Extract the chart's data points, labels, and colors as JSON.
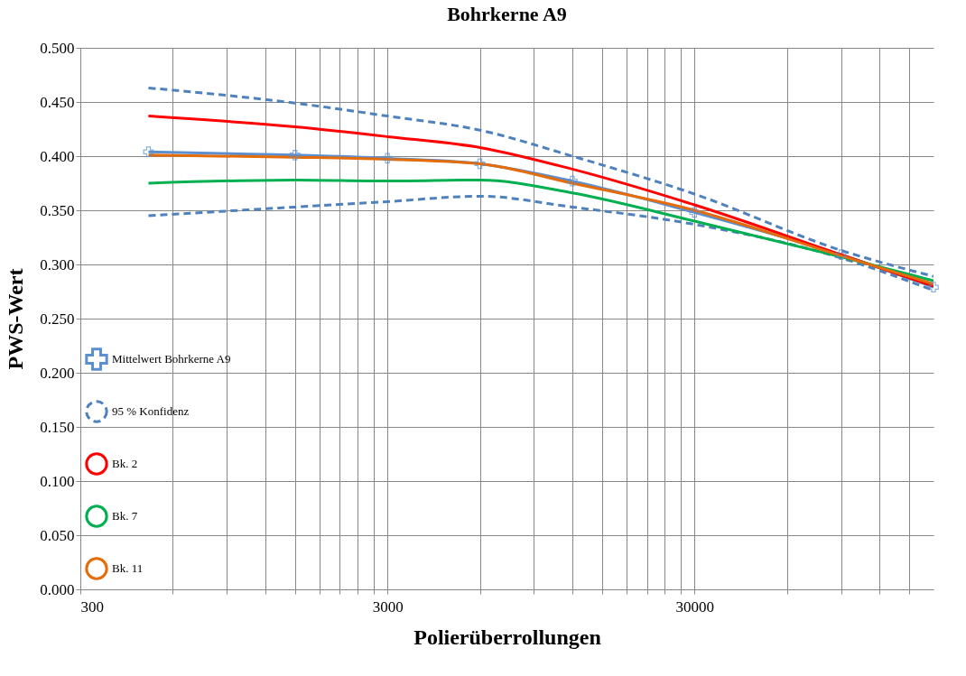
{
  "chart_data": {
    "type": "line",
    "title": "Bohrkerne A9",
    "xlabel": "Polierüberrollungen",
    "ylabel": "PWS-Wert",
    "log": "x",
    "grid": true,
    "legend": "bottom left",
    "xlim": [
      300,
      180000
    ],
    "xticks": [
      300,
      {
        "value": 600,
        "label": null
      },
      {
        "value": 900,
        "label": null
      },
      {
        "value": 1200,
        "label": null
      },
      {
        "value": 1500,
        "label": null
      },
      {
        "value": 1800,
        "label": null
      },
      {
        "value": 2100,
        "label": null
      },
      {
        "value": 2400,
        "label": null
      },
      {
        "value": 2700,
        "label": null
      },
      3000,
      {
        "value": 6000,
        "label": null
      },
      {
        "value": 9000,
        "label": null
      },
      {
        "value": 12000,
        "label": null
      },
      {
        "value": 15000,
        "label": null
      },
      {
        "value": 18000,
        "label": null
      },
      {
        "value": 21000,
        "label": null
      },
      {
        "value": 24000,
        "label": null
      },
      {
        "value": 27000,
        "label": null
      },
      30000,
      {
        "value": 60000,
        "label": null
      },
      {
        "value": 90000,
        "label": null
      },
      {
        "value": 120000,
        "label": null
      },
      {
        "value": 150000,
        "label": null
      }
    ],
    "ylim": [
      0,
      0.5
    ],
    "yticks": [
      {
        "value": 0,
        "label": "0.000"
      },
      {
        "value": 0.05,
        "label": "0.050"
      },
      {
        "value": 0.1,
        "label": "0.100"
      },
      {
        "value": 0.15,
        "label": "0.150"
      },
      {
        "value": 0.2,
        "label": "0.200"
      },
      {
        "value": 0.25,
        "label": "0.250"
      },
      {
        "value": 0.3,
        "label": "0.300"
      },
      {
        "value": 0.35,
        "label": "0.350"
      },
      {
        "value": 0.4,
        "label": "0.400"
      },
      {
        "value": 0.45,
        "label": "0.450"
      },
      {
        "value": 0.5,
        "label": "0.500"
      }
    ],
    "x": [
      500,
      1500,
      3000,
      6000,
      12000,
      30000,
      90000,
      180000
    ],
    "series": [
      {
        "name": "Mittelwert Bohrkerne A9",
        "color": "#5b8fd0",
        "marker": "cross",
        "line_style": "solid",
        "values": [
          0.404,
          0.401,
          0.398,
          0.393,
          0.377,
          0.348,
          0.309,
          0.279
        ]
      },
      {
        "name": "95 % Konfidenz",
        "color": "#4f81bd",
        "marker": "none",
        "line_style": "dashed",
        "values": [
          0.463,
          0.449,
          0.437,
          0.424,
          0.4,
          0.365,
          0.313,
          0.289
        ]
      },
      {
        "color": "#4f81bd",
        "marker": "none",
        "line_style": "dashed",
        "values": [
          0.345,
          0.353,
          0.358,
          0.363,
          0.353,
          0.337,
          0.306,
          0.276
        ]
      },
      {
        "name": "Bk. 2",
        "color": "#ff0000",
        "marker": "none",
        "line_style": "solid",
        "values": [
          0.437,
          0.427,
          0.418,
          0.408,
          0.388,
          0.355,
          0.309,
          0.28
        ]
      },
      {
        "name": "Bk. 7",
        "color": "#00b050",
        "marker": "none",
        "line_style": "solid",
        "values": [
          0.375,
          0.378,
          0.377,
          0.378,
          0.366,
          0.34,
          0.307,
          0.285
        ]
      },
      {
        "name": "Bk. 11",
        "color": "#e46c0a",
        "marker": "none",
        "line_style": "solid",
        "values": [
          0.401,
          0.399,
          0.397,
          0.393,
          0.375,
          0.35,
          0.308,
          0.282
        ]
      }
    ]
  }
}
